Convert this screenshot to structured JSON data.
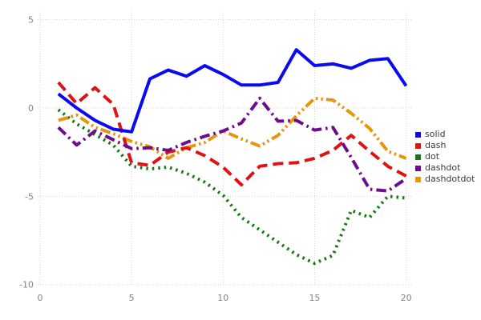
{
  "chart_data": {
    "type": "line",
    "title": "",
    "xlabel": "",
    "ylabel": "",
    "grid": true,
    "legend_position": "right",
    "xlim": [
      0,
      20
    ],
    "ylim": [
      -10,
      5
    ],
    "x_ticks": [
      "0",
      "5",
      "10",
      "15",
      "20"
    ],
    "x_tick_values": [
      0,
      5,
      10,
      15,
      20
    ],
    "y_ticks": [
      "5",
      "0",
      "-5",
      "-10"
    ],
    "y_tick_values": [
      5,
      0,
      -5,
      -10
    ],
    "x": [
      1,
      2,
      3,
      4,
      5,
      6,
      7,
      8,
      9,
      10,
      11,
      12,
      13,
      14,
      15,
      16,
      17,
      18,
      19,
      20
    ],
    "series": [
      {
        "name": "solid",
        "dash_style": "solid",
        "color": "#0a0af0",
        "values": [
          0.8,
          0.0,
          -0.7,
          -1.2,
          -1.35,
          1.65,
          2.15,
          1.8,
          2.4,
          1.9,
          1.3,
          1.3,
          1.45,
          3.3,
          2.4,
          2.5,
          2.25,
          2.7,
          2.8,
          1.25
        ]
      },
      {
        "name": "dash",
        "dash_style": "dash",
        "color": "#e01212",
        "values": [
          1.45,
          0.25,
          1.15,
          0.2,
          -3.1,
          -3.25,
          -2.5,
          -2.25,
          -2.7,
          -3.35,
          -4.35,
          -3.3,
          -3.15,
          -3.1,
          -2.85,
          -2.4,
          -1.55,
          -2.45,
          -3.3,
          -3.85
        ]
      },
      {
        "name": "dot",
        "dash_style": "dot",
        "color": "#167816",
        "values": [
          -0.1,
          -0.9,
          -1.5,
          -2.1,
          -3.3,
          -3.45,
          -3.35,
          -3.7,
          -4.2,
          -4.95,
          -6.2,
          -6.9,
          -7.6,
          -8.3,
          -8.8,
          -8.35,
          -5.8,
          -6.2,
          -5.0,
          -5.1
        ]
      },
      {
        "name": "dashdot",
        "dash_style": "dashdot",
        "color": "#6e0d8a",
        "values": [
          -1.1,
          -2.1,
          -1.3,
          -1.8,
          -2.3,
          -2.25,
          -2.4,
          -1.95,
          -1.6,
          -1.3,
          -0.85,
          0.55,
          -0.75,
          -0.7,
          -1.25,
          -1.1,
          -2.8,
          -4.6,
          -4.7,
          -4.0
        ]
      },
      {
        "name": "dashdotdot",
        "dash_style": "dashdotdot",
        "color": "#e8940e",
        "values": [
          -0.7,
          -0.4,
          -1.1,
          -1.45,
          -1.9,
          -2.2,
          -2.85,
          -2.25,
          -1.95,
          -1.3,
          -1.75,
          -2.15,
          -1.55,
          -0.45,
          0.55,
          0.45,
          -0.3,
          -1.15,
          -2.45,
          -2.85
        ]
      }
    ]
  },
  "style": {
    "background": "#ffffff",
    "grid_color": "#d8d3dd",
    "tick_label_color": "#877f8b",
    "legend_text_color": "#3a3a3e",
    "line_width": 4
  }
}
